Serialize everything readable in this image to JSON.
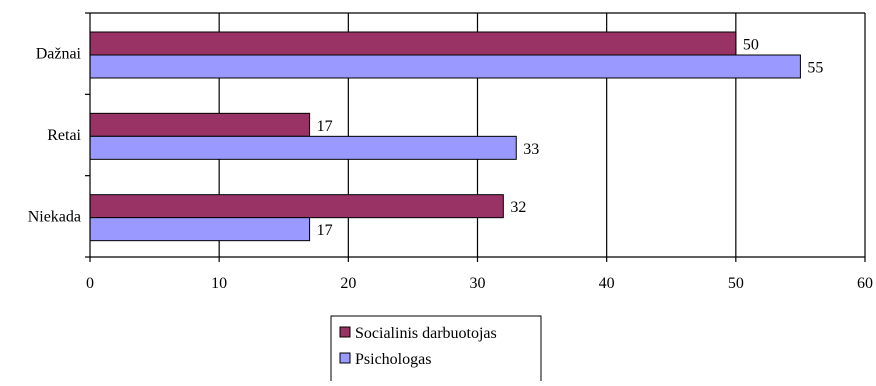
{
  "chart_data": {
    "type": "bar",
    "orientation": "horizontal",
    "categories": [
      "Dažnai",
      "Retai",
      "Niekada"
    ],
    "series": [
      {
        "name": "Socialinis darbuotojas",
        "values": [
          50,
          17,
          32
        ],
        "color": "#993366"
      },
      {
        "name": "Psichologas",
        "values": [
          55,
          33,
          17
        ],
        "color": "#9999ff"
      }
    ],
    "xlim": [
      0,
      60
    ],
    "x_ticks": [
      0,
      10,
      20,
      30,
      40,
      50,
      60
    ],
    "title": "",
    "xlabel": "",
    "ylabel": "",
    "grid": true,
    "legend": "bottom",
    "data_labels": true
  }
}
